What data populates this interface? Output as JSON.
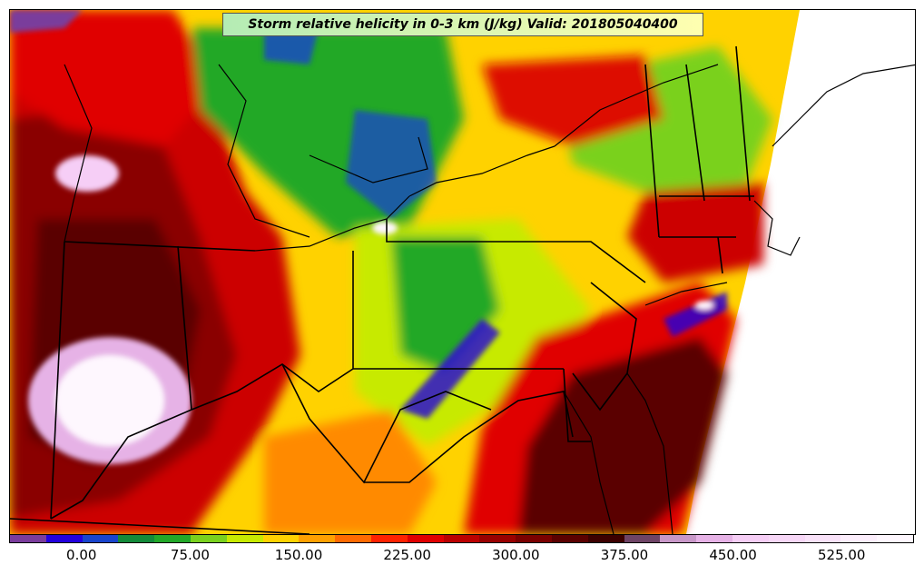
{
  "title": "Storm relative helicity in 0-3 km (J/kg) Valid: 201805040400",
  "colorbar": {
    "colors": [
      "#7a3c9c",
      "#2200dd",
      "#1844cc",
      "#138a3a",
      "#22a828",
      "#7ad11e",
      "#c7ea00",
      "#ffd200",
      "#ffa000",
      "#ff6a00",
      "#ff2200",
      "#e00000",
      "#bb0000",
      "#990000",
      "#7a0000",
      "#5a0000",
      "#3c0000",
      "#6e4466",
      "#c898c8",
      "#e6b2e6",
      "#f6cef6",
      "#f7d7f7",
      "#f9e2f9",
      "#fceefc",
      "#fef7fe"
    ],
    "tick_labels": [
      "0.00",
      "75.00",
      "150.00",
      "225.00",
      "300.00",
      "375.00",
      "450.00",
      "525.00"
    ],
    "tick_values": [
      0,
      75,
      150,
      225,
      300,
      375,
      450,
      525
    ],
    "range": [
      -50,
      575
    ]
  },
  "map": {
    "region": "Northeastern United States",
    "field": "storm relative helicity 0-3 km",
    "units": "J/kg"
  }
}
